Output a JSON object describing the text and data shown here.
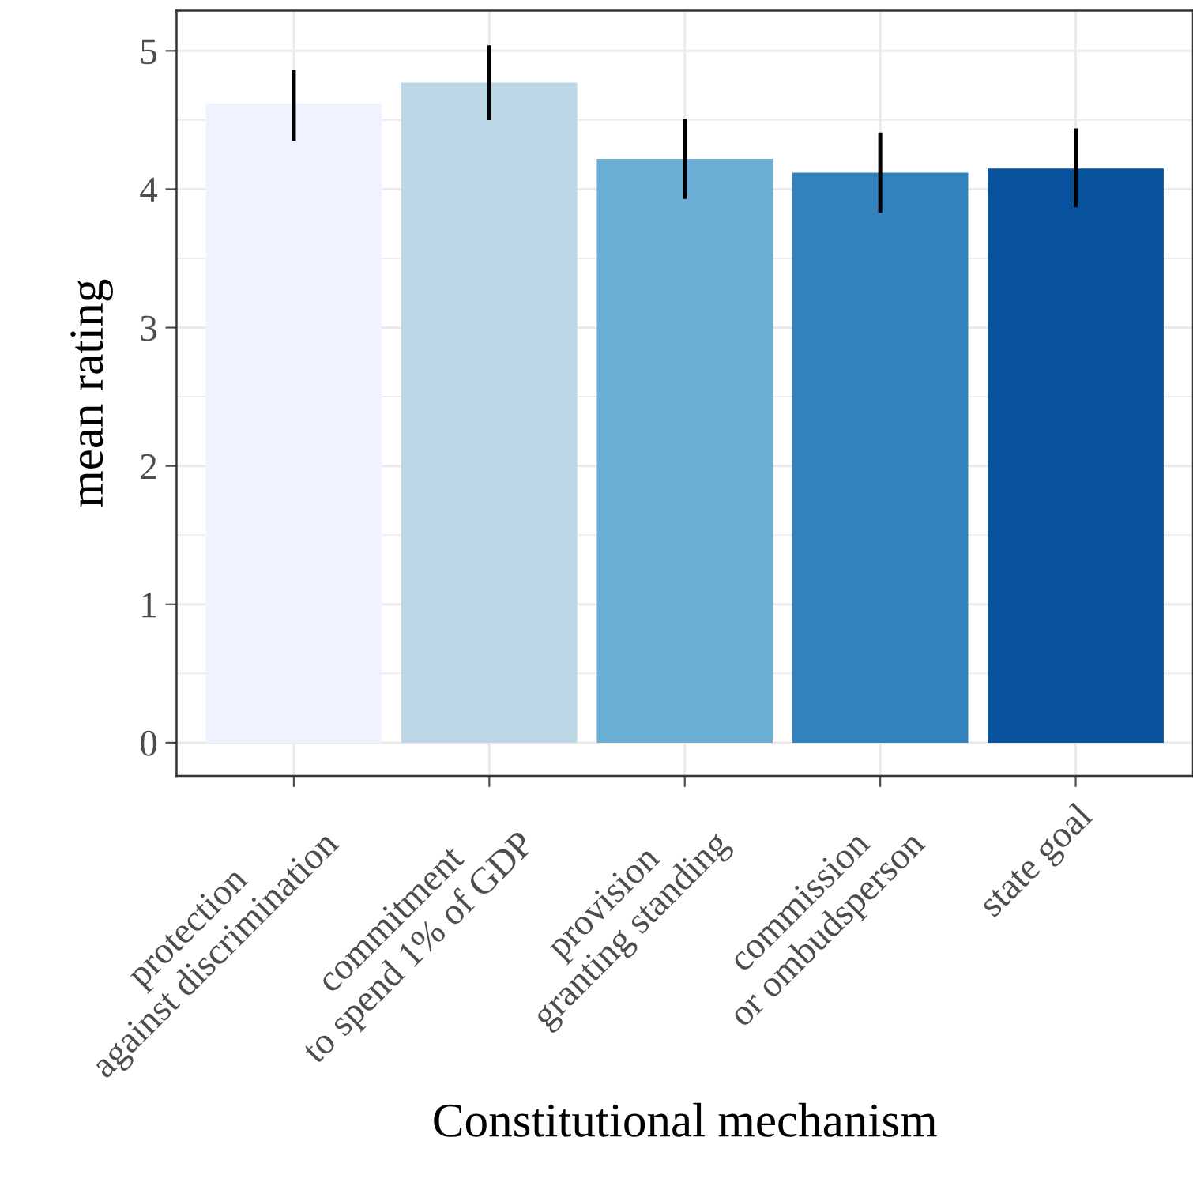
{
  "chart_data": {
    "type": "bar",
    "xlabel": "Constitutional mechanism",
    "ylabel": "mean rating",
    "categories": [
      "protection\nagainst discrimination",
      "commitment\nto spend 1% of GDP",
      "provision\ngranting standing",
      "commission\nor ombudsperson",
      "state goal"
    ],
    "values": [
      4.62,
      4.77,
      4.22,
      4.12,
      4.15
    ],
    "errors": [
      [
        4.35,
        4.86
      ],
      [
        4.5,
        5.04
      ],
      [
        3.93,
        4.51
      ],
      [
        3.83,
        4.41
      ],
      [
        3.87,
        4.44
      ]
    ],
    "colors": [
      "#eff3ff",
      "#bdd7e7",
      "#6baed6",
      "#3182bd",
      "#08519c"
    ],
    "ylim": [
      -0.24,
      5.29
    ],
    "yticks": [
      0,
      1,
      2,
      3,
      4,
      5
    ],
    "grid": true
  }
}
